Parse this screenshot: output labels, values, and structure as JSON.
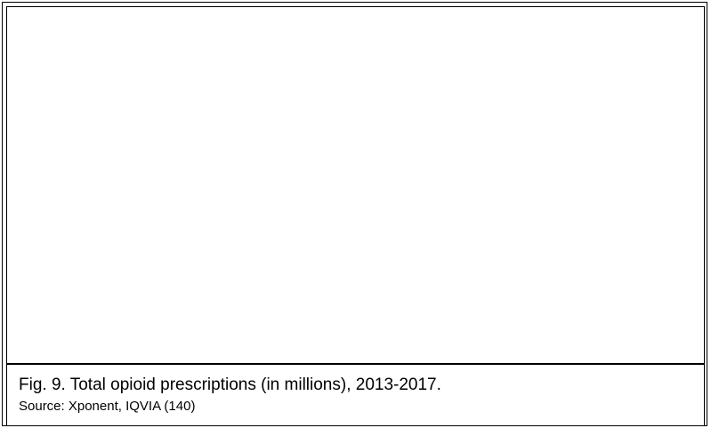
{
  "figure": {
    "caption": "Fig. 9. Total opioid prescriptions (in millions), 2013-2017.",
    "source": "Source: Xponent, IQVIA (140)"
  }
}
